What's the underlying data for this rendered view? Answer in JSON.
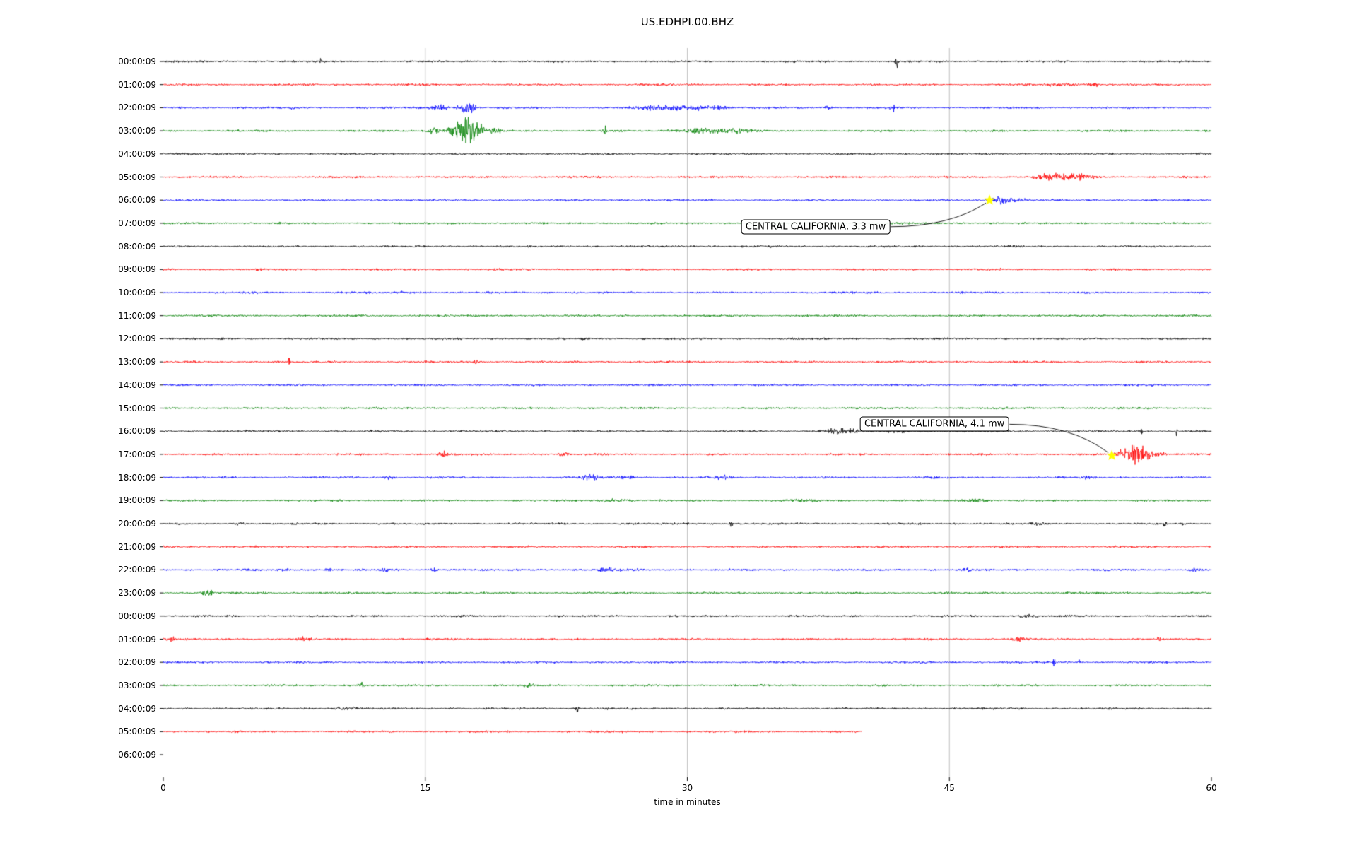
{
  "title": "US.EDHPI.00.BHZ",
  "chart_data": {
    "type": "line",
    "variant": "seismogram-dayplot",
    "title": "US.EDHPI.00.BHZ",
    "xlabel": "time in minutes",
    "xlim": [
      0,
      60
    ],
    "x_ticks": [
      0,
      15,
      30,
      45,
      60
    ],
    "x_tick_labels": [
      "0",
      "15",
      "30",
      "45",
      "60"
    ],
    "grid": "vertical",
    "grid_color": "#b0b0b0",
    "axis_color": "#000000",
    "trace_color_cycle": [
      "#000000",
      "#ff0000",
      "#0000ff",
      "#008000"
    ],
    "rows": [
      {
        "label": "00:00:09",
        "color": "#000000",
        "end_minute": 60,
        "bursts": [
          [
            9,
            0.06,
            3
          ],
          [
            42,
            0.08,
            6
          ]
        ]
      },
      {
        "label": "01:00:09",
        "color": "#ff0000",
        "end_minute": 60,
        "bursts": [
          [
            51.5,
            0.8,
            1.5
          ],
          [
            53.2,
            0.3,
            2.5
          ]
        ]
      },
      {
        "label": "02:00:09",
        "color": "#0000ff",
        "end_minute": 60,
        "bursts": [
          [
            7.3,
            0.15,
            2
          ],
          [
            15.8,
            0.5,
            3
          ],
          [
            17.3,
            0.4,
            6
          ],
          [
            17.8,
            0.15,
            4
          ],
          [
            28.5,
            1.2,
            2
          ],
          [
            30.5,
            1.0,
            2.2
          ],
          [
            32,
            0.5,
            1.5
          ],
          [
            38,
            0.3,
            1.5
          ],
          [
            41.8,
            0.2,
            3.5
          ]
        ]
      },
      {
        "label": "03:00:09",
        "color": "#008000",
        "end_minute": 60,
        "bursts": [
          [
            15.5,
            0.4,
            4
          ],
          [
            16.6,
            0.3,
            8
          ],
          [
            17.4,
            0.5,
            16
          ],
          [
            18.1,
            0.3,
            6
          ],
          [
            19,
            0.3,
            3
          ],
          [
            25.3,
            0.08,
            5
          ],
          [
            30.8,
            1.5,
            2.5
          ],
          [
            33,
            0.8,
            2
          ]
        ]
      },
      {
        "label": "04:00:09",
        "color": "#000000",
        "end_minute": 60,
        "bursts": [
          [
            1,
            1,
            0.8
          ]
        ]
      },
      {
        "label": "05:00:09",
        "color": "#ff0000",
        "end_minute": 60,
        "bursts": [
          [
            50.3,
            0.5,
            3
          ],
          [
            51.5,
            0.8,
            4.5
          ],
          [
            52.8,
            0.4,
            3
          ]
        ]
      },
      {
        "label": "06:00:09",
        "color": "#0000ff",
        "end_minute": 60,
        "bursts": [
          [
            47.8,
            0.5,
            3
          ],
          [
            48.6,
            0.8,
            1.8
          ]
        ]
      },
      {
        "label": "07:00:09",
        "color": "#008000",
        "end_minute": 60,
        "bursts": []
      },
      {
        "label": "08:00:09",
        "color": "#000000",
        "end_minute": 60,
        "bursts": []
      },
      {
        "label": "09:00:09",
        "color": "#ff0000",
        "end_minute": 60,
        "bursts": []
      },
      {
        "label": "10:00:09",
        "color": "#0000ff",
        "end_minute": 60,
        "bursts": [
          [
            14,
            1,
            0.6
          ]
        ]
      },
      {
        "label": "11:00:09",
        "color": "#008000",
        "end_minute": 60,
        "bursts": []
      },
      {
        "label": "12:00:09",
        "color": "#000000",
        "end_minute": 60,
        "bursts": []
      },
      {
        "label": "13:00:09",
        "color": "#ff0000",
        "end_minute": 60,
        "bursts": [
          [
            7.2,
            0.05,
            8
          ],
          [
            17.8,
            0.3,
            1.5
          ]
        ]
      },
      {
        "label": "14:00:09",
        "color": "#0000ff",
        "end_minute": 60,
        "bursts": []
      },
      {
        "label": "15:00:09",
        "color": "#008000",
        "end_minute": 60,
        "bursts": []
      },
      {
        "label": "16:00:09",
        "color": "#000000",
        "end_minute": 60,
        "bursts": [
          [
            38.5,
            0.6,
            2.5
          ],
          [
            39.5,
            0.5,
            2
          ],
          [
            42,
            0.8,
            1.5
          ],
          [
            56,
            0.06,
            6
          ],
          [
            58,
            0.06,
            5
          ]
        ]
      },
      {
        "label": "17:00:09",
        "color": "#ff0000",
        "end_minute": 60,
        "bursts": [
          [
            16,
            0.3,
            2.5
          ],
          [
            23,
            0.3,
            2.5
          ],
          [
            54.8,
            0.3,
            4
          ],
          [
            55.6,
            0.5,
            10
          ],
          [
            56.3,
            0.5,
            5
          ],
          [
            57,
            0.4,
            2.5
          ]
        ]
      },
      {
        "label": "18:00:09",
        "color": "#0000ff",
        "end_minute": 60,
        "bursts": [
          [
            13,
            0.3,
            2
          ],
          [
            24.5,
            0.8,
            2
          ],
          [
            26.5,
            0.6,
            1.8
          ],
          [
            32,
            0.5,
            2
          ],
          [
            44,
            0.5,
            1.2
          ],
          [
            53,
            0.4,
            1.5
          ]
        ]
      },
      {
        "label": "19:00:09",
        "color": "#008000",
        "end_minute": 60,
        "bursts": [
          [
            25.8,
            1,
            1.5
          ],
          [
            36.5,
            1,
            1.2
          ],
          [
            46.5,
            0.8,
            1.5
          ]
        ]
      },
      {
        "label": "20:00:09",
        "color": "#000000",
        "end_minute": 60,
        "bursts": [
          [
            4.2,
            0.3,
            1.5
          ],
          [
            32.5,
            0.1,
            2.5
          ],
          [
            50,
            0.4,
            1.5
          ],
          [
            57.3,
            0.1,
            3
          ],
          [
            58.4,
            0.1,
            3
          ]
        ]
      },
      {
        "label": "21:00:09",
        "color": "#ff0000",
        "end_minute": 60,
        "bursts": []
      },
      {
        "label": "22:00:09",
        "color": "#0000ff",
        "end_minute": 60,
        "bursts": [
          [
            7,
            0.2,
            1.6
          ],
          [
            9.5,
            0.2,
            1.6
          ],
          [
            12.7,
            0.2,
            1.8
          ],
          [
            15.5,
            0.2,
            1.8
          ],
          [
            25.8,
            1.0,
            2
          ],
          [
            46,
            0.3,
            1.5
          ],
          [
            59,
            0.3,
            1.8
          ]
        ]
      },
      {
        "label": "23:00:09",
        "color": "#008000",
        "end_minute": 60,
        "bursts": [
          [
            2.6,
            0.4,
            2.5
          ]
        ]
      },
      {
        "label": "00:00:09",
        "color": "#000000",
        "end_minute": 60,
        "bursts": [
          [
            49.5,
            0.6,
            1.2
          ]
        ]
      },
      {
        "label": "01:00:09",
        "color": "#ff0000",
        "end_minute": 60,
        "bursts": [
          [
            0.5,
            0.3,
            2.5
          ],
          [
            8,
            0.3,
            2
          ],
          [
            49,
            0.5,
            1.5
          ],
          [
            57,
            0.1,
            2.5
          ]
        ]
      },
      {
        "label": "02:00:09",
        "color": "#0000ff",
        "end_minute": 60,
        "bursts": [
          [
            51,
            0.06,
            8
          ],
          [
            52.4,
            0.06,
            5
          ]
        ]
      },
      {
        "label": "03:00:09",
        "color": "#008000",
        "end_minute": 60,
        "bursts": [
          [
            11.3,
            0.15,
            4
          ],
          [
            21,
            0.3,
            1.5
          ]
        ]
      },
      {
        "label": "04:00:09",
        "color": "#000000",
        "end_minute": 60,
        "bursts": [
          [
            10.5,
            0.8,
            1.2
          ],
          [
            23.7,
            0.07,
            4
          ]
        ]
      },
      {
        "label": "05:00:09",
        "color": "#ff0000",
        "end_minute": 40,
        "bursts": []
      },
      {
        "label": "06:00:09",
        "color": null,
        "end_minute": 0,
        "bursts": []
      }
    ],
    "annotations": [
      {
        "label": "CENTRAL CALIFORNIA, 3.3 mw",
        "row": 6,
        "event_minute": 47.3,
        "box_row": 7.15,
        "box_minute_right": 41.6,
        "marker": "yellow-star",
        "marker_color": "#ffff00"
      },
      {
        "label": "CENTRAL CALIFORNIA, 4.1 mw",
        "row": 17.05,
        "event_minute": 54.3,
        "box_row": 15.7,
        "box_minute_right": 48.4,
        "marker": "yellow-star",
        "marker_color": "#ffff00"
      }
    ]
  }
}
